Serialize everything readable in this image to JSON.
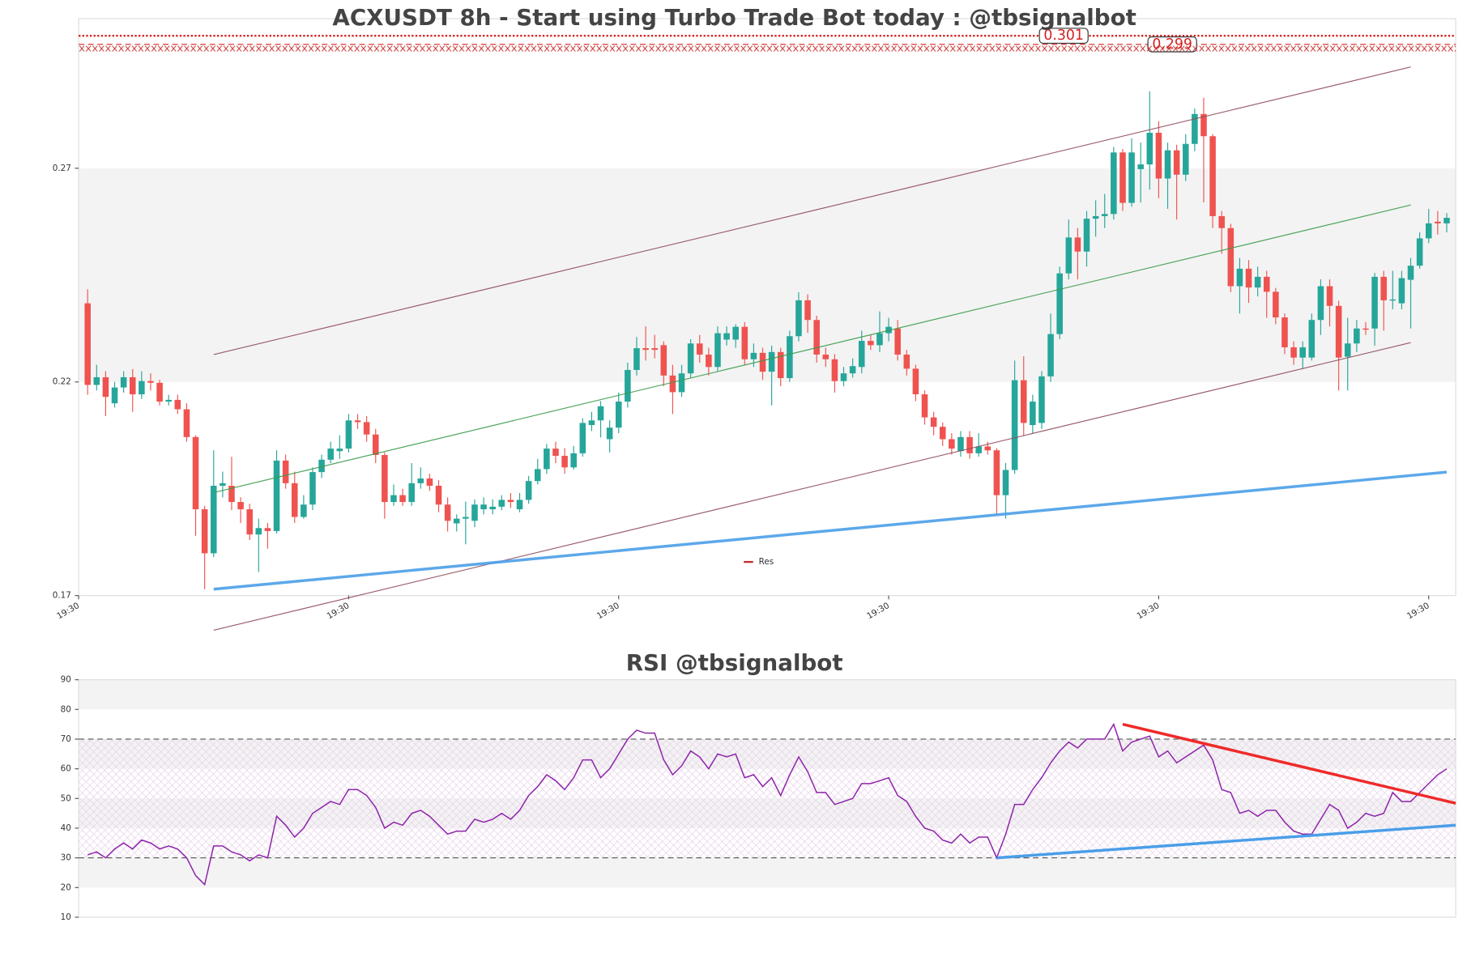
{
  "chart_data": [
    {
      "type": "candlestick",
      "title": "ACXUSDT 8h - Start using Turbo Trade Bot today : @tbsignalbot",
      "ohlc": [
        [
          0.2384,
          0.2417,
          0.217,
          0.2193
        ],
        [
          0.2193,
          0.224,
          0.218,
          0.2211
        ],
        [
          0.2211,
          0.2225,
          0.212,
          0.2165
        ],
        [
          0.215,
          0.22,
          0.214,
          0.2187
        ],
        [
          0.2187,
          0.2225,
          0.2175,
          0.2211
        ],
        [
          0.2211,
          0.223,
          0.213,
          0.2171
        ],
        [
          0.2171,
          0.2225,
          0.216,
          0.2202
        ],
        [
          0.2202,
          0.222,
          0.218,
          0.2198
        ],
        [
          0.2198,
          0.2205,
          0.2145,
          0.2154
        ],
        [
          0.2154,
          0.217,
          0.2145,
          0.2158
        ],
        [
          0.2158,
          0.217,
          0.2125,
          0.2136
        ],
        [
          0.2136,
          0.215,
          0.206,
          0.2071
        ],
        [
          0.2071,
          0.2075,
          0.184,
          0.1902
        ],
        [
          0.1902,
          0.191,
          0.1715,
          0.1799
        ],
        [
          0.1799,
          0.204,
          0.179,
          0.1957
        ],
        [
          0.1957,
          0.199,
          0.193,
          0.1963
        ],
        [
          0.1957,
          0.2025,
          0.19,
          0.1919
        ],
        [
          0.1919,
          0.193,
          0.187,
          0.1902
        ],
        [
          0.1902,
          0.1915,
          0.183,
          0.1843
        ],
        [
          0.1843,
          0.188,
          0.1755,
          0.1858
        ],
        [
          0.1858,
          0.187,
          0.181,
          0.1851
        ],
        [
          0.1851,
          0.204,
          0.1845,
          0.2016
        ],
        [
          0.2016,
          0.203,
          0.195,
          0.1963
        ],
        [
          0.1963,
          0.199,
          0.187,
          0.1884
        ],
        [
          0.1884,
          0.1935,
          0.188,
          0.1913
        ],
        [
          0.1913,
          0.2,
          0.19,
          0.1989
        ],
        [
          0.1989,
          0.203,
          0.1975,
          0.2018
        ],
        [
          0.2018,
          0.206,
          0.201,
          0.2044
        ],
        [
          0.2038,
          0.2075,
          0.202,
          0.2044
        ],
        [
          0.2044,
          0.2125,
          0.2035,
          0.211
        ],
        [
          0.211,
          0.2125,
          0.209,
          0.2106
        ],
        [
          0.2106,
          0.212,
          0.206,
          0.2077
        ],
        [
          0.2077,
          0.209,
          0.201,
          0.2029
        ],
        [
          0.2029,
          0.2035,
          0.188,
          0.1919
        ],
        [
          0.1919,
          0.196,
          0.191,
          0.1935
        ],
        [
          0.1935,
          0.195,
          0.191,
          0.1919
        ],
        [
          0.1919,
          0.201,
          0.191,
          0.1963
        ],
        [
          0.1963,
          0.2,
          0.195,
          0.1974
        ],
        [
          0.1974,
          0.1985,
          0.1945,
          0.1957
        ],
        [
          0.1957,
          0.197,
          0.1895,
          0.1913
        ],
        [
          0.1913,
          0.193,
          0.185,
          0.1875
        ],
        [
          0.1869,
          0.189,
          0.185,
          0.188
        ],
        [
          0.188,
          0.192,
          0.182,
          0.1884
        ],
        [
          0.1875,
          0.1925,
          0.186,
          0.1913
        ],
        [
          0.1902,
          0.193,
          0.189,
          0.1913
        ],
        [
          0.1902,
          0.1925,
          0.189,
          0.1908
        ],
        [
          0.1908,
          0.1935,
          0.19,
          0.1924
        ],
        [
          0.1924,
          0.194,
          0.1905,
          0.1919
        ],
        [
          0.1902,
          0.194,
          0.1895,
          0.1924
        ],
        [
          0.1924,
          0.198,
          0.1915,
          0.1968
        ],
        [
          0.1968,
          0.202,
          0.196,
          0.1996
        ],
        [
          0.1996,
          0.2055,
          0.1985,
          0.2044
        ],
        [
          0.2044,
          0.206,
          0.201,
          0.2027
        ],
        [
          0.2027,
          0.2045,
          0.1985,
          0.2
        ],
        [
          0.2,
          0.205,
          0.1995,
          0.2033
        ],
        [
          0.2033,
          0.2115,
          0.2025,
          0.2104
        ],
        [
          0.2099,
          0.213,
          0.2085,
          0.211
        ],
        [
          0.211,
          0.2155,
          0.207,
          0.2143
        ],
        [
          0.2066,
          0.211,
          0.2035,
          0.2093
        ],
        [
          0.2093,
          0.2175,
          0.208,
          0.2154
        ],
        [
          0.2154,
          0.2245,
          0.214,
          0.2228
        ],
        [
          0.2228,
          0.2305,
          0.2215,
          0.2279
        ],
        [
          0.2279,
          0.233,
          0.225,
          0.2275
        ],
        [
          0.2279,
          0.231,
          0.2255,
          0.2275
        ],
        [
          0.2286,
          0.2295,
          0.219,
          0.2215
        ],
        [
          0.2215,
          0.224,
          0.2125,
          0.2176
        ],
        [
          0.2176,
          0.224,
          0.2165,
          0.222
        ],
        [
          0.222,
          0.23,
          0.221,
          0.229
        ],
        [
          0.229,
          0.231,
          0.2245,
          0.2264
        ],
        [
          0.2264,
          0.228,
          0.2215,
          0.2235
        ],
        [
          0.2235,
          0.233,
          0.2225,
          0.2314
        ],
        [
          0.2299,
          0.233,
          0.2285,
          0.2314
        ],
        [
          0.2299,
          0.2335,
          0.228,
          0.2329
        ],
        [
          0.2329,
          0.234,
          0.224,
          0.2253
        ],
        [
          0.2253,
          0.229,
          0.2235,
          0.2268
        ],
        [
          0.2268,
          0.228,
          0.2205,
          0.2224
        ],
        [
          0.2224,
          0.2285,
          0.2145,
          0.227
        ],
        [
          0.227,
          0.228,
          0.219,
          0.2209
        ],
        [
          0.2209,
          0.232,
          0.22,
          0.2307
        ],
        [
          0.2307,
          0.241,
          0.2295,
          0.2391
        ],
        [
          0.2391,
          0.2405,
          0.2315,
          0.2345
        ],
        [
          0.2345,
          0.2355,
          0.2245,
          0.2264
        ],
        [
          0.2264,
          0.228,
          0.2235,
          0.2253
        ],
        [
          0.2253,
          0.2265,
          0.2175,
          0.2202
        ],
        [
          0.2202,
          0.2235,
          0.219,
          0.222
        ],
        [
          0.222,
          0.2255,
          0.221,
          0.2237
        ],
        [
          0.2235,
          0.232,
          0.222,
          0.2296
        ],
        [
          0.2296,
          0.231,
          0.2275,
          0.2286
        ],
        [
          0.2286,
          0.2365,
          0.227,
          0.2314
        ],
        [
          0.2314,
          0.235,
          0.2295,
          0.2329
        ],
        [
          0.2325,
          0.2345,
          0.225,
          0.2264
        ],
        [
          0.2264,
          0.2275,
          0.2215,
          0.2231
        ],
        [
          0.2231,
          0.224,
          0.2155,
          0.2171
        ],
        [
          0.2171,
          0.218,
          0.21,
          0.2117
        ],
        [
          0.2117,
          0.213,
          0.2075,
          0.2095
        ],
        [
          0.2095,
          0.2105,
          0.205,
          0.2066
        ],
        [
          0.2066,
          0.208,
          0.203,
          0.2044
        ],
        [
          0.2038,
          0.2085,
          0.2025,
          0.2071
        ],
        [
          0.2071,
          0.2085,
          0.202,
          0.2033
        ],
        [
          0.2033,
          0.208,
          0.2025,
          0.2049
        ],
        [
          0.2049,
          0.206,
          0.203,
          0.204
        ],
        [
          0.204,
          0.2045,
          0.189,
          0.1935
        ],
        [
          0.1935,
          0.201,
          0.188,
          0.1994
        ],
        [
          0.1994,
          0.225,
          0.1985,
          0.2204
        ],
        [
          0.2204,
          0.226,
          0.2075,
          0.2104
        ],
        [
          0.2099,
          0.217,
          0.208,
          0.2154
        ],
        [
          0.2104,
          0.2225,
          0.209,
          0.2213
        ],
        [
          0.2213,
          0.236,
          0.22,
          0.2312
        ],
        [
          0.2312,
          0.247,
          0.23,
          0.2454
        ],
        [
          0.2454,
          0.258,
          0.244,
          0.2538
        ],
        [
          0.2538,
          0.256,
          0.244,
          0.2505
        ],
        [
          0.2505,
          0.26,
          0.247,
          0.2582
        ],
        [
          0.2582,
          0.2625,
          0.254,
          0.2588
        ],
        [
          0.2588,
          0.264,
          0.256,
          0.2593
        ],
        [
          0.2593,
          0.275,
          0.258,
          0.2737
        ],
        [
          0.2737,
          0.2745,
          0.26,
          0.2619
        ],
        [
          0.2619,
          0.277,
          0.261,
          0.2737
        ],
        [
          0.2698,
          0.276,
          0.262,
          0.2709
        ],
        [
          0.2709,
          0.288,
          0.265,
          0.2783
        ],
        [
          0.2783,
          0.281,
          0.263,
          0.2676
        ],
        [
          0.2676,
          0.276,
          0.2605,
          0.2742
        ],
        [
          0.2742,
          0.2755,
          0.258,
          0.2685
        ],
        [
          0.2685,
          0.278,
          0.267,
          0.2757
        ],
        [
          0.2757,
          0.284,
          0.274,
          0.2827
        ],
        [
          0.2827,
          0.2865,
          0.262,
          0.2775
        ],
        [
          0.2775,
          0.278,
          0.256,
          0.2588
        ],
        [
          0.2588,
          0.26,
          0.25,
          0.256
        ],
        [
          0.256,
          0.257,
          0.241,
          0.2424
        ],
        [
          0.2424,
          0.249,
          0.236,
          0.2465
        ],
        [
          0.2465,
          0.2485,
          0.2385,
          0.2421
        ],
        [
          0.2421,
          0.247,
          0.24,
          0.2446
        ],
        [
          0.2446,
          0.246,
          0.235,
          0.2411
        ],
        [
          0.2411,
          0.242,
          0.2335,
          0.2351
        ],
        [
          0.2351,
          0.236,
          0.2265,
          0.2281
        ],
        [
          0.2281,
          0.2295,
          0.224,
          0.2257
        ],
        [
          0.2257,
          0.2295,
          0.223,
          0.2281
        ],
        [
          0.2257,
          0.236,
          0.225,
          0.2345
        ],
        [
          0.2345,
          0.244,
          0.231,
          0.2424
        ],
        [
          0.2424,
          0.244,
          0.233,
          0.2378
        ],
        [
          0.2378,
          0.239,
          0.218,
          0.2257
        ],
        [
          0.2259,
          0.235,
          0.218,
          0.229
        ],
        [
          0.229,
          0.2345,
          0.227,
          0.2325
        ],
        [
          0.2325,
          0.234,
          0.231,
          0.2323
        ],
        [
          0.2325,
          0.2455,
          0.2285,
          0.2446
        ],
        [
          0.2446,
          0.246,
          0.232,
          0.2391
        ],
        [
          0.2391,
          0.246,
          0.237,
          0.2393
        ],
        [
          0.2384,
          0.246,
          0.237,
          0.2443
        ],
        [
          0.2439,
          0.249,
          0.2325,
          0.2472
        ],
        [
          0.2472,
          0.255,
          0.2465,
          0.2536
        ],
        [
          0.2536,
          0.2605,
          0.2525,
          0.2571
        ],
        [
          0.2575,
          0.26,
          0.2545,
          0.2571
        ],
        [
          0.2571,
          0.2595,
          0.255,
          0.2584
        ]
      ],
      "up_color": "#26a69a",
      "down_color": "#ef5350",
      "xlim": [
        -1,
        152
      ],
      "xticks": [
        {
          "value": -1,
          "label": "19:30"
        },
        {
          "value": 29,
          "label": "19:30"
        },
        {
          "value": 59,
          "label": "19:30"
        },
        {
          "value": 89,
          "label": "19:30"
        },
        {
          "value": 119,
          "label": "19:30"
        },
        {
          "value": 149,
          "label": "19:30"
        }
      ],
      "ylim": [
        0.17,
        0.305
      ],
      "yticks": [
        0.17,
        0.22,
        0.27
      ],
      "trendlines": [
        {
          "start": [
            14,
            0.2264
          ],
          "end": [
            147,
            0.2937
          ],
          "color": "#8e4a5a",
          "width": 1
        },
        {
          "start": [
            14,
            0.1619
          ],
          "end": [
            147,
            0.2292
          ],
          "color": "#8e4a5a",
          "width": 1
        },
        {
          "start": [
            14,
            0.1941
          ],
          "end": [
            147,
            0.2614
          ],
          "color": "#3a9a4a",
          "width": 1
        },
        {
          "start": [
            14,
            0.1715
          ],
          "end": [
            151,
            0.1989
          ],
          "color": "#4a9ee8",
          "width": 3
        }
      ],
      "price_lines": [
        {
          "value": 0.301,
          "color": "#d62020",
          "style": "dotted"
        },
        {
          "value": 0.299,
          "color": "#d62020",
          "style": "dashed"
        }
      ],
      "resistance": {
        "name": "Res",
        "value": 0.298,
        "color": "#c62828"
      },
      "legend": "lower center"
    },
    {
      "type": "line",
      "title": "RSI @tbsignalbot",
      "values": [
        31,
        32,
        30,
        33,
        35,
        33,
        36,
        35,
        33,
        34,
        33,
        30,
        24,
        21,
        34,
        34,
        32,
        31,
        29,
        31,
        30,
        44,
        41,
        37,
        40,
        45,
        47,
        49,
        48,
        53,
        53,
        51,
        47,
        40,
        42,
        41,
        45,
        46,
        44,
        41,
        38,
        39,
        39,
        43,
        42,
        43,
        45,
        43,
        46,
        51,
        54,
        58,
        56,
        53,
        57,
        63,
        63,
        57,
        60,
        65,
        70,
        73,
        72,
        72,
        63,
        58,
        61,
        66,
        64,
        60,
        65,
        64,
        65,
        57,
        58,
        54,
        57,
        51,
        58,
        64,
        59,
        52,
        52,
        48,
        49,
        50,
        55,
        55,
        56,
        57,
        51,
        49,
        44,
        40,
        39,
        36,
        35,
        38,
        35,
        37,
        37,
        30,
        38,
        48,
        48,
        53,
        57,
        62,
        66,
        69,
        67,
        70,
        70,
        70,
        75,
        66,
        69,
        70,
        71,
        64,
        66,
        62,
        64,
        66,
        68,
        63,
        53,
        52,
        45,
        46,
        44,
        46,
        46,
        42,
        39,
        38,
        38,
        43,
        48,
        46,
        40,
        42,
        45,
        44,
        45,
        52,
        49,
        49,
        52,
        55,
        58,
        60
      ],
      "color": "#8e24aa",
      "xlim": [
        -1,
        152
      ],
      "ylim": [
        10,
        90
      ],
      "yticks": [
        10,
        20,
        30,
        40,
        50,
        60,
        70,
        80,
        90
      ],
      "levels": [
        30,
        70
      ],
      "trendlines": [
        {
          "start": [
            115,
            75
          ],
          "end": [
            152,
            48.4
          ],
          "color": "#ee2a2a",
          "width": 3
        },
        {
          "start": [
            101,
            30
          ],
          "end": [
            152,
            41
          ],
          "color": "#4a9ee8",
          "width": 3
        }
      ]
    }
  ]
}
